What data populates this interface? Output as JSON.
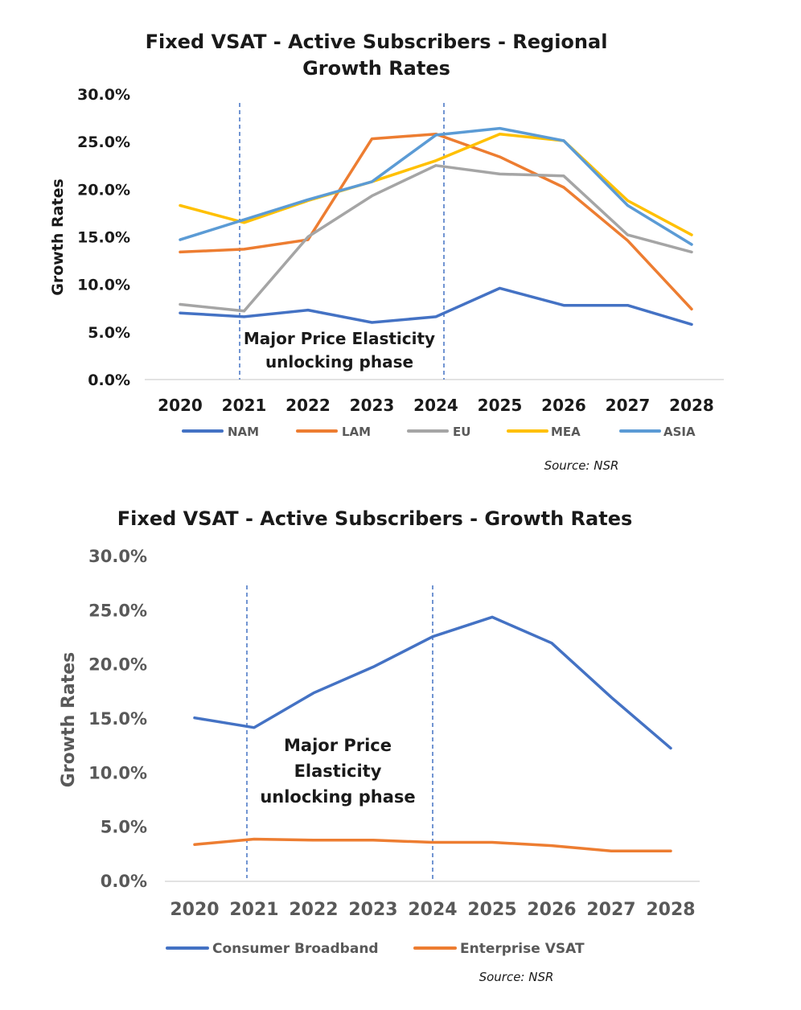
{
  "chart_data": [
    {
      "type": "line",
      "title_lines": [
        "Fixed VSAT - Active Subscribers - Regional",
        "Growth Rates"
      ],
      "ylabel": "Growth Rates",
      "xlabel": "",
      "categories": [
        "2020",
        "2021",
        "2022",
        "2023",
        "2024",
        "2025",
        "2026",
        "2027",
        "2028"
      ],
      "ylim": [
        0,
        30
      ],
      "yticks": [
        "0.0%",
        "5.0%",
        "10.0%",
        "15.0%",
        "20.0%",
        "25.0%",
        "30.0%"
      ],
      "series": [
        {
          "name": "NAM",
          "color": "#4472C4",
          "values": [
            7.0,
            6.6,
            7.3,
            6.0,
            6.6,
            9.6,
            7.8,
            7.8,
            5.8
          ]
        },
        {
          "name": "LAM",
          "color": "#ED7D31",
          "values": [
            13.4,
            13.7,
            14.7,
            25.3,
            25.8,
            23.4,
            20.2,
            14.6,
            7.4
          ]
        },
        {
          "name": "EU",
          "color": "#A5A5A5",
          "values": [
            7.9,
            7.2,
            15.0,
            19.3,
            22.5,
            21.6,
            21.4,
            15.2,
            13.4
          ]
        },
        {
          "name": "MEA",
          "color": "#FFC000",
          "values": [
            18.3,
            16.5,
            18.8,
            20.8,
            23.0,
            25.8,
            25.1,
            18.8,
            15.2
          ]
        },
        {
          "name": "ASIA",
          "color": "#5B9BD5",
          "values": [
            14.7,
            16.8,
            18.9,
            20.8,
            25.7,
            26.4,
            25.1,
            18.3,
            14.2
          ]
        }
      ],
      "vlines_at": [
        "2021",
        "2024"
      ],
      "annotation": [
        "Major Price Elasticity",
        "unlocking phase"
      ],
      "source": "Source: NSR",
      "legend_position": "bottom"
    },
    {
      "type": "line",
      "title_lines": [
        "Fixed VSAT - Active Subscribers - Growth Rates"
      ],
      "ylabel": "Growth Rates",
      "xlabel": "",
      "categories": [
        "2020",
        "2021",
        "2022",
        "2023",
        "2024",
        "2025",
        "2026",
        "2027",
        "2028"
      ],
      "ylim": [
        0,
        30
      ],
      "yticks": [
        "0.0%",
        "5.0%",
        "10.0%",
        "15.0%",
        "20.0%",
        "25.0%",
        "30.0%"
      ],
      "series": [
        {
          "name": "Consumer Broadband",
          "color": "#4472C4",
          "values": [
            15.1,
            14.2,
            17.4,
            19.8,
            22.6,
            24.4,
            22.0,
            17.0,
            12.3
          ]
        },
        {
          "name": "Enterprise VSAT",
          "color": "#ED7D31",
          "values": [
            3.4,
            3.9,
            3.8,
            3.8,
            3.6,
            3.6,
            3.3,
            2.8,
            2.8
          ]
        }
      ],
      "vlines_at": [
        "2021",
        "2024"
      ],
      "annotation": [
        "Major Price",
        "Elasticity",
        "unlocking phase"
      ],
      "source": "Source: NSR",
      "legend_position": "bottom"
    }
  ]
}
